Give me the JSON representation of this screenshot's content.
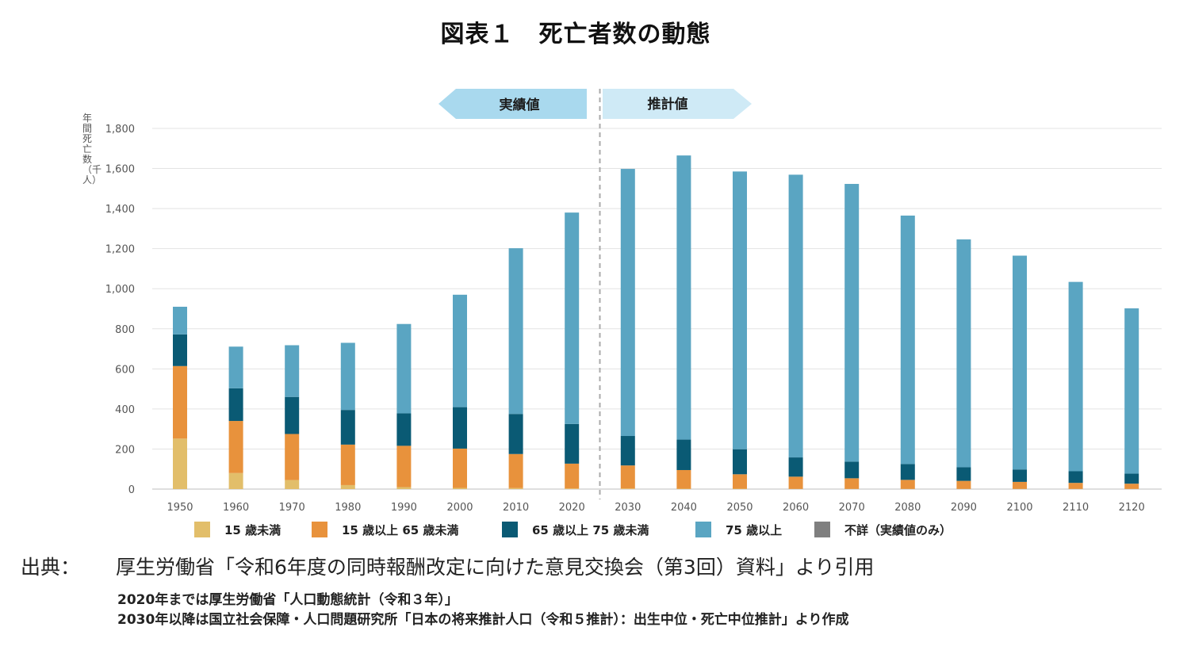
{
  "title": "図表１　死亡者数の動態",
  "chart_data": {
    "type": "bar",
    "stacked": true,
    "ylabel": "年間死亡数（千人）",
    "ylim": [
      0,
      1800
    ],
    "yticks": [
      "0",
      "200",
      "400",
      "600",
      "800",
      "1,000",
      "1,200",
      "1,400",
      "1,600",
      "1,800"
    ],
    "ytick_values": [
      0,
      200,
      400,
      600,
      800,
      1000,
      1200,
      1400,
      1600,
      1800
    ],
    "grid": true,
    "categories": [
      "1950",
      "1960",
      "1970",
      "1980",
      "1990",
      "2000",
      "2010",
      "2020",
      "2030",
      "2040",
      "2050",
      "2060",
      "2070",
      "2080",
      "2090",
      "2100",
      "2110",
      "2120"
    ],
    "series": [
      {
        "name": "15 歳未満",
        "color": "#E2BE6A",
        "values": [
          252,
          80,
          45,
          20,
          10,
          6,
          5,
          3,
          3,
          2,
          2,
          1,
          1,
          1,
          1,
          1,
          1,
          1
        ]
      },
      {
        "name": "15 歳以上 65 歳未満",
        "color": "#E8923C",
        "values": [
          362,
          260,
          230,
          202,
          206,
          196,
          170,
          124,
          115,
          93,
          72,
          61,
          53,
          45,
          40,
          35,
          30,
          26
        ]
      },
      {
        "name": "65 歳以上 75 歳未満",
        "color": "#0A5A74",
        "values": [
          158,
          163,
          185,
          173,
          162,
          207,
          200,
          198,
          147,
          152,
          125,
          96,
          83,
          79,
          68,
          62,
          58,
          50
        ]
      },
      {
        "name": "75 歳以上",
        "color": "#5AA5C2",
        "values": [
          138,
          208,
          258,
          335,
          446,
          561,
          827,
          1055,
          1333,
          1418,
          1386,
          1411,
          1386,
          1240,
          1137,
          1067,
          945,
          825
        ]
      },
      {
        "name": "不詳（実績値のみ）",
        "color": "#7F7F7F",
        "values": [
          0,
          0,
          0,
          0,
          0,
          0,
          0,
          0,
          0,
          0,
          0,
          0,
          0,
          0,
          0,
          0,
          0,
          0
        ]
      }
    ],
    "banner_actual": "実績値",
    "banner_forecast": "推計値",
    "split_after": "2020",
    "legend_position": "bottom"
  },
  "source": {
    "label": "出典：",
    "text": "厚生労働省「令和6年度の同時報酬改定に向けた意見交換会（第3回）資料」より引用",
    "note1": "2020年までは厚生労働省「人口動態統計（令和３年）」",
    "note2": "2030年以降は国立社会保障・人口問題研究所「日本の将来推計人口（令和５推計）：出生中位・死亡中位推計」より作成"
  }
}
